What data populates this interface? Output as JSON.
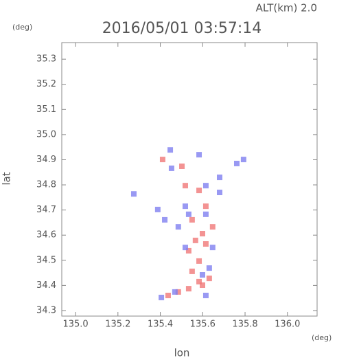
{
  "chart_data": {
    "type": "scatter",
    "title": "2016/05/01 03:57:14",
    "subtitle": "ALT(km) 2.0",
    "y_unit": "(deg)",
    "x_unit": "(deg)",
    "xlabel": "lon",
    "ylabel": "lat",
    "xlim": [
      134.935,
      136.14
    ],
    "ylim": [
      34.278,
      35.366
    ],
    "xticks": [
      {
        "value": 135.0,
        "label": "135.0"
      },
      135.2,
      135.4,
      135.6,
      135.8,
      {
        "value": 136.0,
        "label": "136.0"
      }
    ],
    "yticks": [
      34.3,
      34.4,
      34.5,
      34.6,
      34.7,
      34.8,
      34.9,
      {
        "value": 35.0,
        "label": "35.0"
      },
      35.1,
      35.2,
      35.3
    ],
    "series": [
      {
        "color": "#f07878",
        "x": [
          135.411,
          135.502,
          135.518,
          135.583,
          135.615,
          135.55,
          135.599,
          135.566,
          135.615,
          135.534,
          135.583,
          135.55,
          135.583,
          135.599,
          135.534,
          135.485,
          135.437,
          135.631,
          135.647
        ],
        "y": [
          34.901,
          34.874,
          34.797,
          34.778,
          34.715,
          34.661,
          34.606,
          34.579,
          34.565,
          34.538,
          34.497,
          34.456,
          34.415,
          34.401,
          34.387,
          34.374,
          34.36,
          34.428,
          34.633
        ]
      },
      {
        "color": "#8080f0",
        "x": [
          135.447,
          135.583,
          135.453,
          135.68,
          135.761,
          135.793,
          135.275,
          135.421,
          135.388,
          135.485,
          135.615,
          135.647,
          135.518,
          135.631,
          135.599,
          135.469,
          135.405,
          135.615,
          135.534,
          135.68,
          135.615,
          135.518
        ],
        "y": [
          34.939,
          34.92,
          34.866,
          34.83,
          34.885,
          34.901,
          34.764,
          34.661,
          34.702,
          34.633,
          34.683,
          34.551,
          34.551,
          34.469,
          34.442,
          34.374,
          34.352,
          34.36,
          34.683,
          34.77,
          34.797,
          34.715
        ]
      }
    ]
  }
}
